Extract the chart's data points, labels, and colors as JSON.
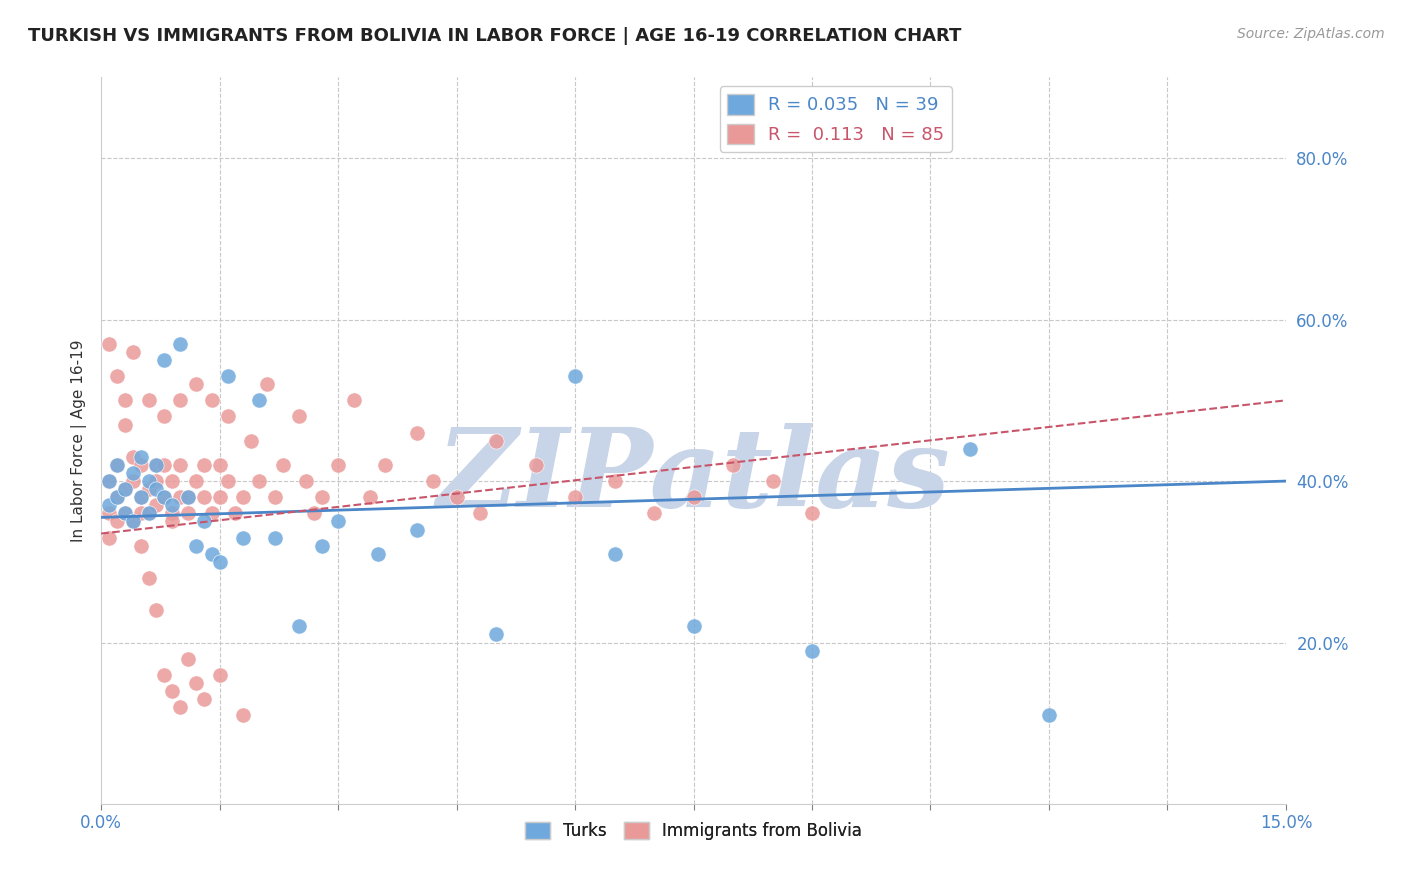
{
  "title": "TURKISH VS IMMIGRANTS FROM BOLIVIA IN LABOR FORCE | AGE 16-19 CORRELATION CHART",
  "source": "Source: ZipAtlas.com",
  "xlabel": "",
  "ylabel": "In Labor Force | Age 16-19",
  "xlim": [
    0.0,
    0.15
  ],
  "ylim": [
    0.0,
    0.9
  ],
  "xticks": [
    0.0,
    0.015,
    0.03,
    0.045,
    0.06,
    0.075,
    0.09,
    0.105,
    0.12,
    0.135,
    0.15
  ],
  "xtick_labels": [
    "0.0%",
    "",
    "",
    "",
    "",
    "",
    "",
    "",
    "",
    "",
    "15.0%"
  ],
  "yticks": [
    0.0,
    0.2,
    0.4,
    0.6,
    0.8
  ],
  "ytick_labels": [
    "",
    "20.0%",
    "40.0%",
    "60.0%",
    "80.0%"
  ],
  "turks_R": 0.035,
  "turks_N": 39,
  "bolivia_R": 0.113,
  "bolivia_N": 85,
  "turk_color": "#6fa8dc",
  "bolivia_color": "#ea9999",
  "turk_line_color": "#4a86c8",
  "bolivia_line_color": "#c8556a",
  "grid_color": "#c8c8c8",
  "watermark_color": "#c8d4e8",
  "watermark_text": "ZIPatlas",
  "background_color": "#ffffff",
  "turks_x": [
    0.001,
    0.001,
    0.002,
    0.002,
    0.003,
    0.003,
    0.004,
    0.004,
    0.005,
    0.005,
    0.006,
    0.006,
    0.007,
    0.007,
    0.008,
    0.008,
    0.009,
    0.01,
    0.011,
    0.012,
    0.013,
    0.014,
    0.015,
    0.016,
    0.018,
    0.02,
    0.022,
    0.025,
    0.028,
    0.03,
    0.035,
    0.04,
    0.05,
    0.06,
    0.065,
    0.075,
    0.09,
    0.11,
    0.12
  ],
  "turks_y": [
    0.37,
    0.4,
    0.38,
    0.42,
    0.36,
    0.39,
    0.41,
    0.35,
    0.43,
    0.38,
    0.4,
    0.36,
    0.39,
    0.42,
    0.38,
    0.55,
    0.37,
    0.57,
    0.38,
    0.32,
    0.35,
    0.31,
    0.3,
    0.53,
    0.33,
    0.5,
    0.33,
    0.22,
    0.32,
    0.35,
    0.31,
    0.34,
    0.21,
    0.53,
    0.31,
    0.22,
    0.19,
    0.44,
    0.11
  ],
  "bolivia_x": [
    0.001,
    0.001,
    0.001,
    0.002,
    0.002,
    0.002,
    0.003,
    0.003,
    0.003,
    0.004,
    0.004,
    0.004,
    0.005,
    0.005,
    0.005,
    0.006,
    0.006,
    0.006,
    0.007,
    0.007,
    0.007,
    0.008,
    0.008,
    0.008,
    0.009,
    0.009,
    0.009,
    0.01,
    0.01,
    0.01,
    0.011,
    0.011,
    0.012,
    0.012,
    0.013,
    0.013,
    0.014,
    0.014,
    0.015,
    0.015,
    0.016,
    0.016,
    0.017,
    0.018,
    0.019,
    0.02,
    0.021,
    0.022,
    0.023,
    0.025,
    0.026,
    0.027,
    0.028,
    0.03,
    0.032,
    0.034,
    0.036,
    0.04,
    0.042,
    0.045,
    0.048,
    0.05,
    0.055,
    0.06,
    0.065,
    0.07,
    0.075,
    0.08,
    0.085,
    0.09,
    0.001,
    0.002,
    0.003,
    0.004,
    0.005,
    0.006,
    0.007,
    0.008,
    0.009,
    0.01,
    0.011,
    0.012,
    0.013,
    0.015,
    0.018
  ],
  "bolivia_y": [
    0.36,
    0.4,
    0.33,
    0.38,
    0.42,
    0.35,
    0.36,
    0.5,
    0.39,
    0.4,
    0.35,
    0.43,
    0.36,
    0.42,
    0.38,
    0.36,
    0.5,
    0.39,
    0.42,
    0.37,
    0.4,
    0.38,
    0.42,
    0.48,
    0.36,
    0.4,
    0.35,
    0.38,
    0.5,
    0.42,
    0.36,
    0.38,
    0.4,
    0.52,
    0.38,
    0.42,
    0.36,
    0.5,
    0.38,
    0.42,
    0.48,
    0.4,
    0.36,
    0.38,
    0.45,
    0.4,
    0.52,
    0.38,
    0.42,
    0.48,
    0.4,
    0.36,
    0.38,
    0.42,
    0.5,
    0.38,
    0.42,
    0.46,
    0.4,
    0.38,
    0.36,
    0.45,
    0.42,
    0.38,
    0.4,
    0.36,
    0.38,
    0.42,
    0.4,
    0.36,
    0.57,
    0.53,
    0.47,
    0.56,
    0.32,
    0.28,
    0.24,
    0.16,
    0.14,
    0.12,
    0.18,
    0.15,
    0.13,
    0.16,
    0.11
  ]
}
